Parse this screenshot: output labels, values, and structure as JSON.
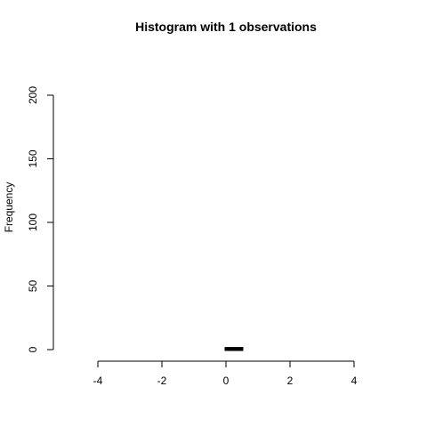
{
  "chart_data": {
    "type": "bar",
    "title": "Histogram with 1 observations",
    "xlabel": "",
    "ylabel": "Frequency",
    "xlim": [
      -4,
      4
    ],
    "ylim": [
      0,
      200
    ],
    "x_ticks": [
      -4,
      -2,
      0,
      2,
      4
    ],
    "y_ticks": [
      0,
      50,
      100,
      150,
      200
    ],
    "bins": [
      {
        "start": 0,
        "end": 0.5,
        "count": 1
      }
    ],
    "grid": false,
    "colors": {
      "bar": "#000000",
      "axis": "#000000",
      "background": "#ffffff"
    }
  }
}
